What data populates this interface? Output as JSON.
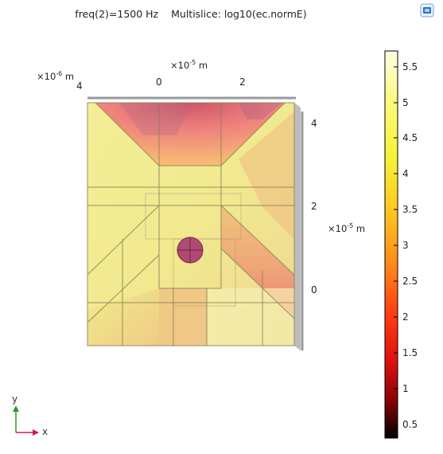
{
  "plot": {
    "title_expression": "freq(2)=1500 Hz",
    "title_dataset": "Multislice: log10(ec.normE)"
  },
  "axes": {
    "top_scale_prefix": "×10",
    "top_scale_exp": "-5",
    "top_scale_unit": "m",
    "left_scale_prefix": "×10",
    "left_scale_exp": "-6",
    "left_scale_unit": "m",
    "right_scale_prefix": "×10",
    "right_scale_exp": "-5",
    "right_scale_unit": "m",
    "top_ticks": [
      "0",
      "2"
    ],
    "left_tick": "4",
    "right_ticks": [
      "4",
      "2",
      "0"
    ]
  },
  "colorbar": {
    "labels": [
      "5.5",
      "5",
      "4.5",
      "4",
      "3.5",
      "3",
      "2.5",
      "2",
      "1.5",
      "1",
      "0.5"
    ],
    "stops": [
      "#ffffe6",
      "#fafa85",
      "#f5f23a",
      "#ffcc22",
      "#ff8a1a",
      "#ff3d12",
      "#e01010",
      "#8a0505",
      "#000000"
    ]
  },
  "triad": {
    "y_label": "y",
    "x_label": "x",
    "y_color": "#2a9a2a",
    "x_color": "#d0185a"
  }
}
